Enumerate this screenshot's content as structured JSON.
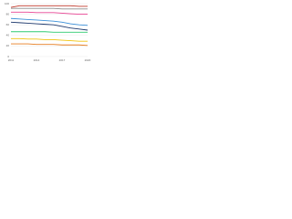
{
  "chart_data": {
    "type": "line",
    "x": [
      "2011",
      "2012",
      "2013",
      "2014",
      "2015",
      "2016",
      "2017",
      "2018",
      "2019",
      "2020"
    ],
    "series": [
      {
        "color": "#c0392b",
        "values": [
          93,
          96,
          96,
          96,
          96,
          96,
          96,
          96,
          95,
          95
        ]
      },
      {
        "color": "#8c8c8c",
        "values": [
          91,
          91,
          91,
          91,
          91,
          91,
          90,
          90,
          90,
          90
        ]
      },
      {
        "color": "#e84393",
        "values": [
          84,
          84,
          84,
          83,
          83,
          83,
          82,
          81,
          80,
          80
        ]
      },
      {
        "color": "#3a8fd8",
        "values": [
          72,
          71,
          70,
          69,
          68,
          67,
          65,
          62,
          60,
          59
        ]
      },
      {
        "color": "#1f3a6e",
        "values": [
          65,
          64,
          63,
          62,
          61,
          60,
          57,
          54,
          52,
          50
        ]
      },
      {
        "color": "#2ecc71",
        "values": [
          47,
          47,
          47,
          47,
          47,
          46,
          46,
          46,
          46,
          46
        ]
      },
      {
        "color": "#f1c40f",
        "values": [
          34,
          34,
          33,
          33,
          32,
          32,
          31,
          30,
          29,
          29
        ]
      },
      {
        "color": "#e67e22",
        "values": [
          24,
          24,
          24,
          23,
          23,
          23,
          22,
          22,
          22,
          21
        ]
      }
    ],
    "ylim": [
      0,
      100
    ],
    "yticks": [
      0,
      20,
      40,
      60,
      80,
      100
    ],
    "grid": true
  }
}
